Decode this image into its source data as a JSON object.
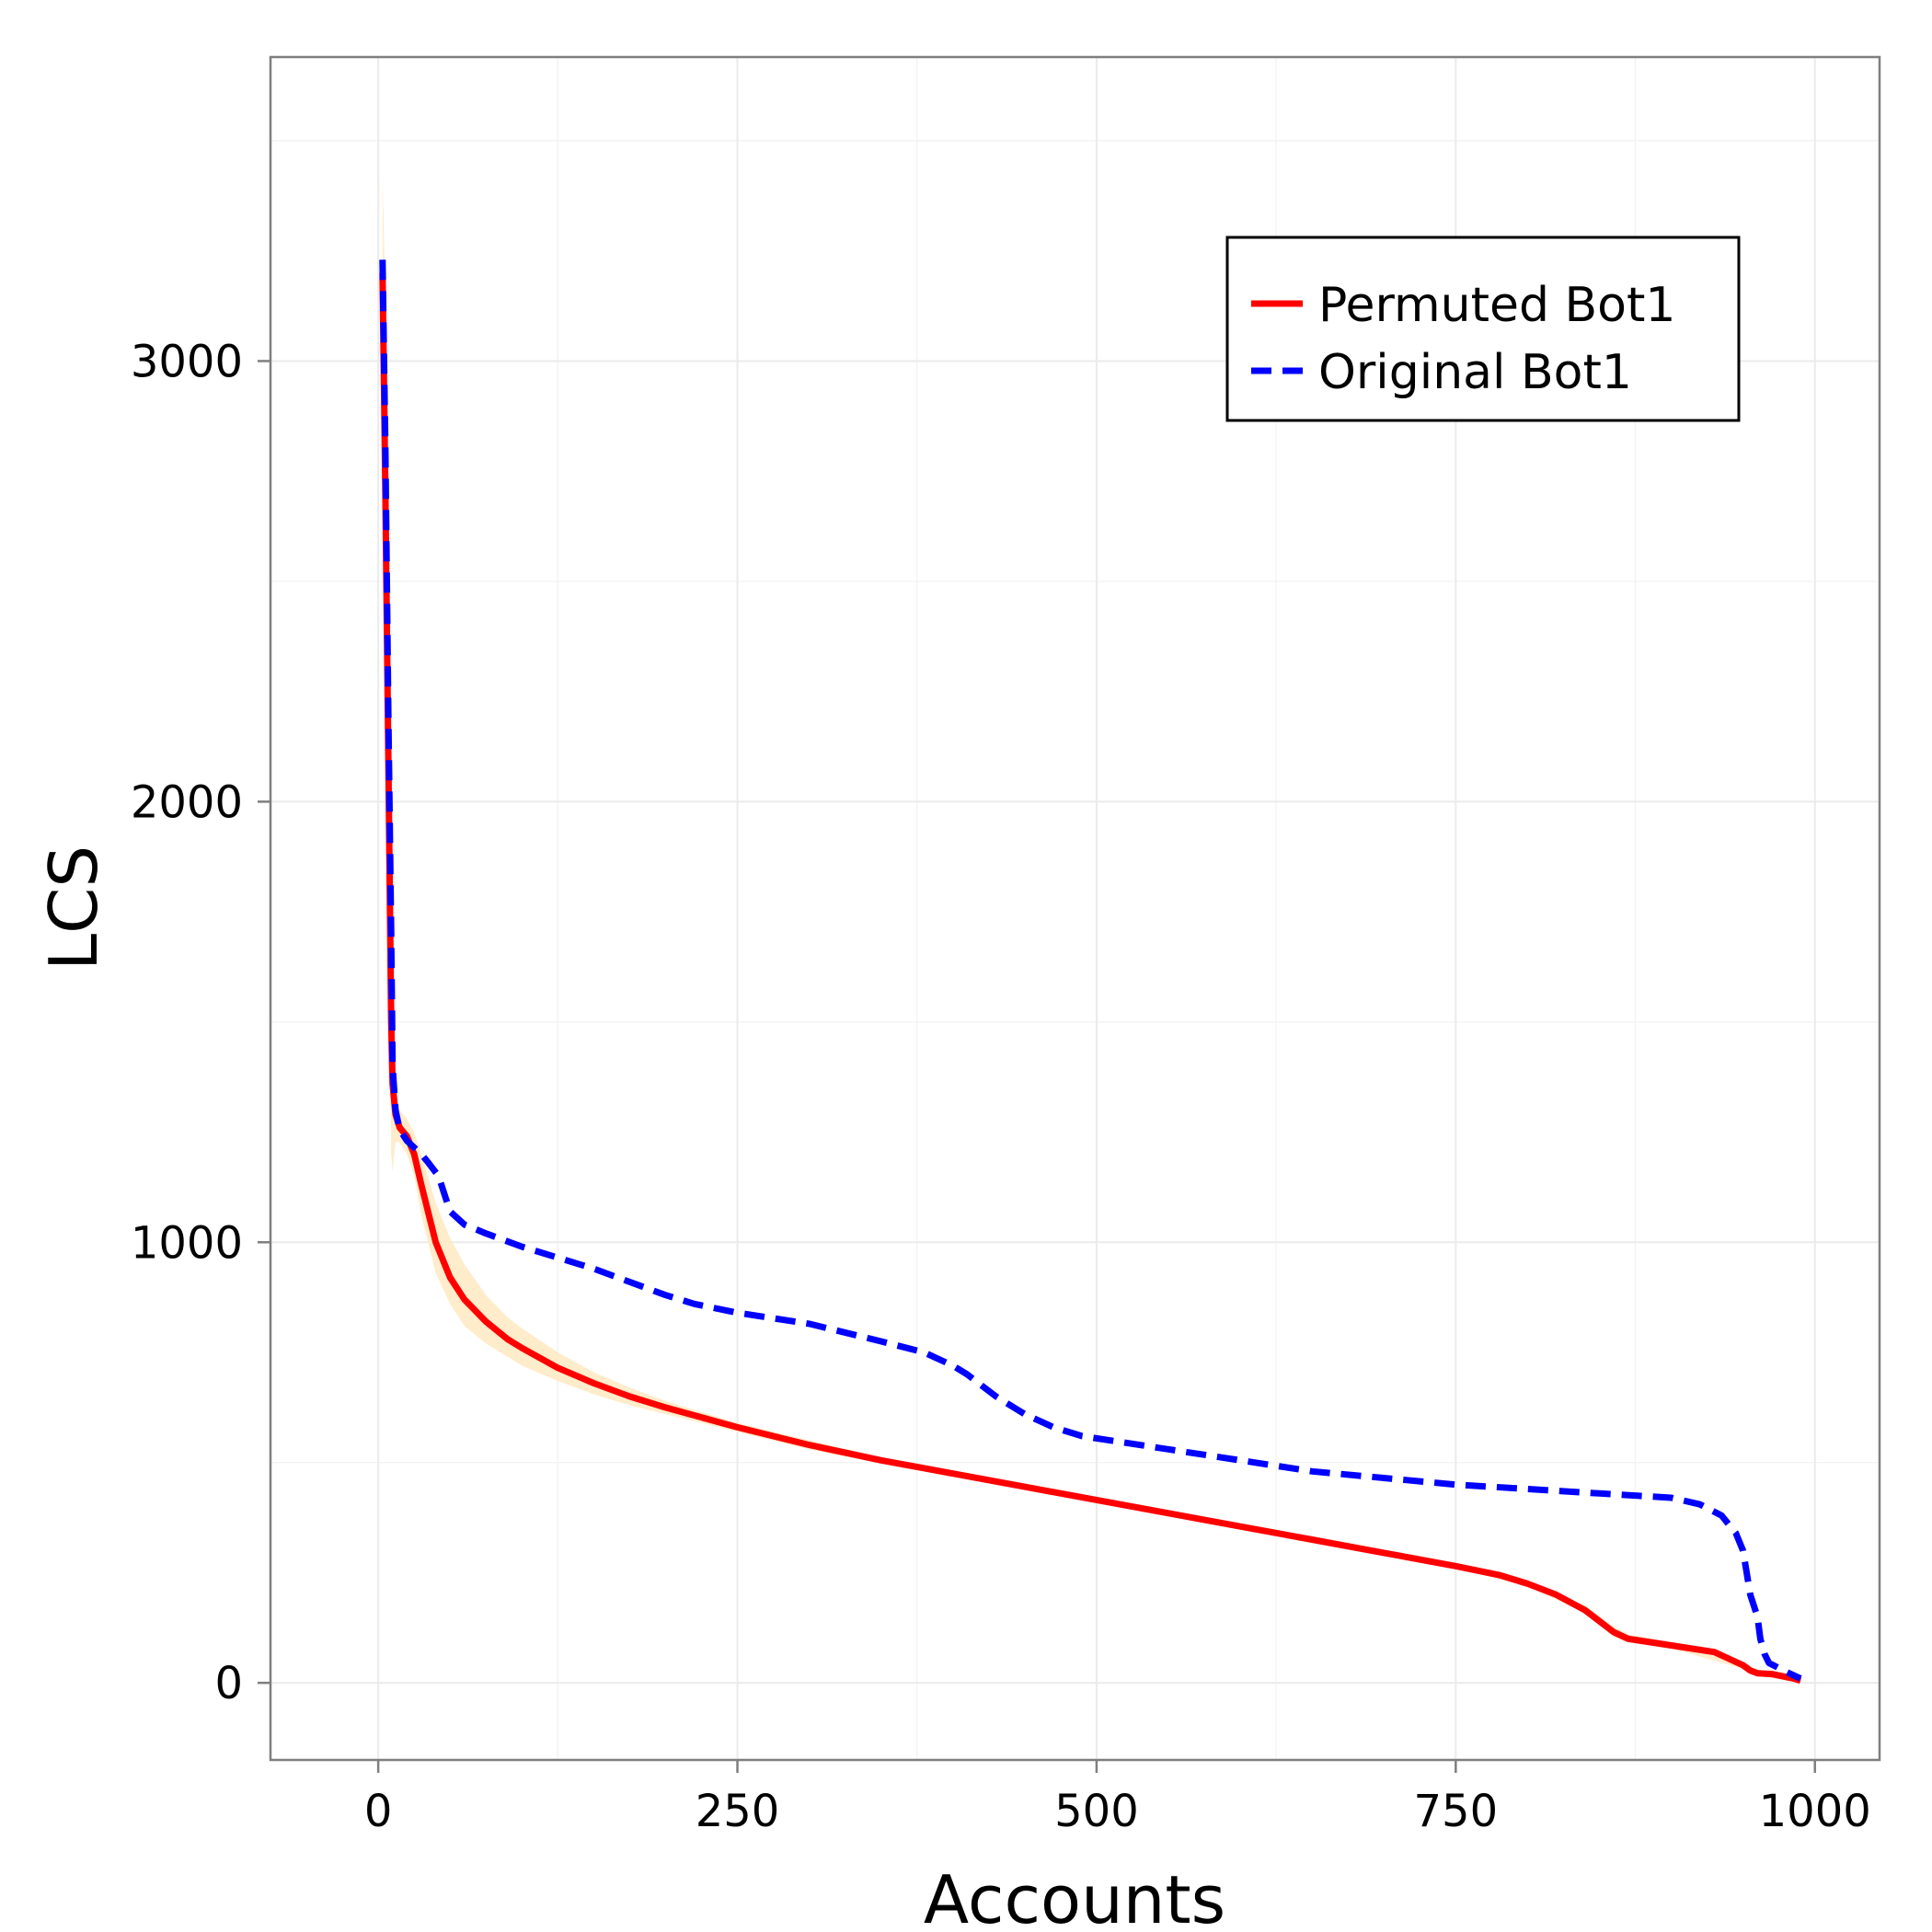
{
  "chart_data": {
    "type": "line",
    "title": "",
    "xlabel": "Accounts",
    "ylabel": "LCS",
    "xlim": [
      -75,
      1045
    ],
    "ylim": [
      -175,
      3690
    ],
    "x_ticks": [
      0,
      250,
      500,
      750,
      1000
    ],
    "y_ticks": [
      0,
      1000,
      2000,
      3000
    ],
    "x_minor": [
      125,
      375,
      625,
      875
    ],
    "y_minor": [
      500,
      1500,
      2500,
      3500
    ],
    "grid": true,
    "legend_position": "top-right",
    "colors": {
      "permuted": "#ff0000",
      "original": "#0000ff",
      "band": "#ffe9c2",
      "grid": "#ebebeb",
      "border": "#7f7f7f"
    },
    "series": [
      {
        "name": "Permuted Bot1",
        "style": "solid",
        "color": "#ff0000",
        "x": [
          3,
          5,
          7,
          9,
          10,
          12,
          15,
          20,
          25,
          30,
          40,
          50,
          60,
          75,
          90,
          100,
          125,
          150,
          175,
          200,
          250,
          300,
          350,
          400,
          450,
          500,
          550,
          600,
          650,
          700,
          750,
          780,
          800,
          820,
          840,
          860,
          870,
          900,
          930,
          950,
          955,
          960,
          970,
          985,
          990
        ],
        "y": [
          3200,
          2700,
          2100,
          1500,
          1360,
          1290,
          1260,
          1240,
          1200,
          1130,
          1000,
          920,
          870,
          820,
          780,
          760,
          715,
          680,
          650,
          625,
          580,
          540,
          505,
          475,
          445,
          415,
          385,
          355,
          325,
          295,
          265,
          245,
          225,
          200,
          165,
          115,
          100,
          85,
          70,
          40,
          28,
          22,
          20,
          10,
          5
        ]
      },
      {
        "name": "Original Bot1",
        "style": "dashed",
        "color": "#0000ff",
        "x": [
          3,
          5,
          7,
          9,
          10,
          12,
          15,
          20,
          30,
          35,
          42,
          50,
          60,
          75,
          100,
          150,
          175,
          200,
          220,
          250,
          300,
          350,
          380,
          400,
          410,
          430,
          450,
          470,
          490,
          520,
          580,
          650,
          750,
          850,
          900,
          920,
          935,
          945,
          950,
          955,
          960,
          962,
          965,
          968,
          980,
          990
        ],
        "y": [
          3230,
          2800,
          2200,
          1700,
          1400,
          1300,
          1255,
          1230,
          1200,
          1180,
          1150,
          1070,
          1040,
          1020,
          990,
          940,
          910,
          880,
          860,
          840,
          815,
          775,
          750,
          720,
          700,
          650,
          610,
          580,
          560,
          545,
          515,
          480,
          450,
          430,
          420,
          405,
          380,
          340,
          300,
          200,
          150,
          100,
          65,
          45,
          25,
          10
        ]
      }
    ],
    "band": {
      "x": [
        3,
        5,
        7,
        9,
        10,
        12,
        15,
        20,
        25,
        30,
        40,
        50,
        60,
        75,
        90,
        100,
        125,
        150,
        175,
        200,
        250,
        300,
        350,
        400,
        450,
        500,
        550,
        600,
        650,
        700,
        750,
        800,
        840,
        860,
        870,
        900,
        950,
        960,
        990
      ],
      "upper": [
        3420,
        3150,
        2400,
        1800,
        1500,
        1320,
        1300,
        1280,
        1250,
        1200,
        1090,
        1010,
        950,
        880,
        830,
        805,
        750,
        705,
        670,
        640,
        590,
        550,
        512,
        480,
        450,
        420,
        390,
        360,
        330,
        300,
        270,
        230,
        175,
        128,
        110,
        92,
        48,
        28,
        10
      ],
      "lower": [
        2900,
        2400,
        1800,
        1200,
        1160,
        1230,
        1225,
        1200,
        1150,
        1060,
        930,
        860,
        810,
        770,
        740,
        720,
        685,
        655,
        630,
        610,
        570,
        530,
        498,
        470,
        440,
        410,
        380,
        350,
        320,
        290,
        260,
        220,
        158,
        105,
        92,
        78,
        32,
        16,
        0
      ]
    }
  }
}
